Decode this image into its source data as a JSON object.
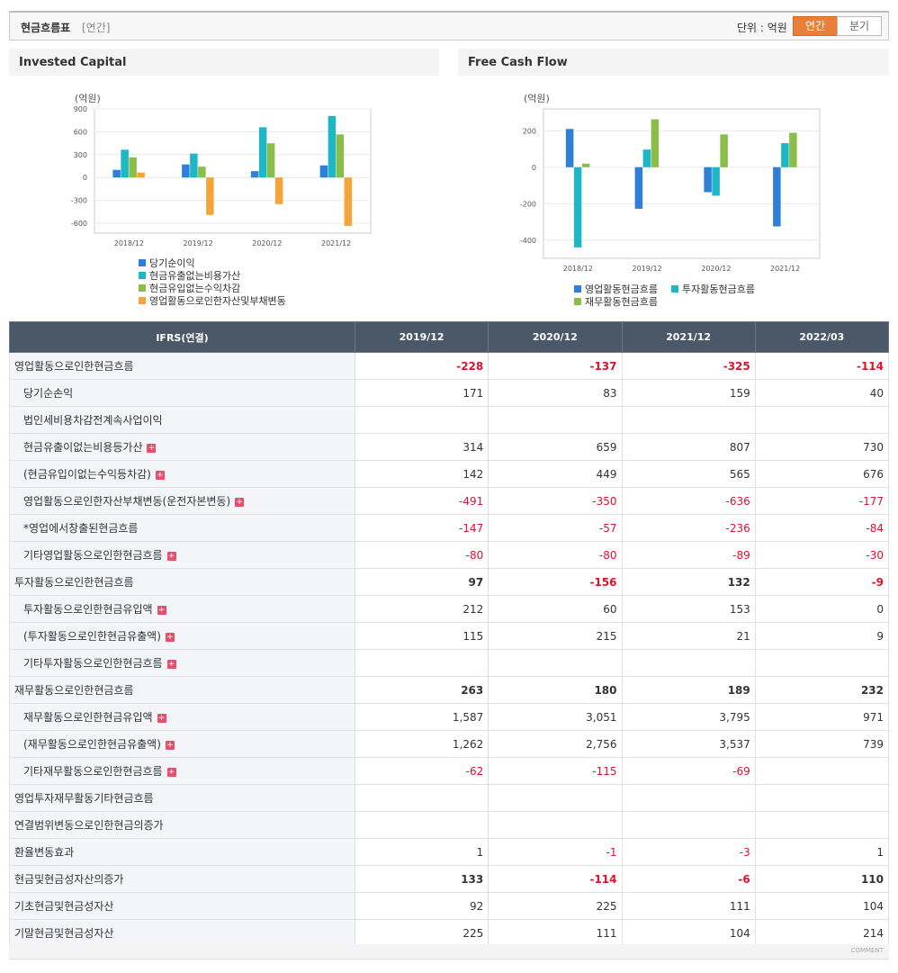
{
  "header": {
    "title": "현금흐름표",
    "period": "[연간]",
    "unit": "단위 : 억원",
    "tabs": [
      "연간",
      "분기"
    ]
  },
  "chart_data": [
    {
      "type": "bar",
      "title": "Invested Capital",
      "y_label": "(억원)",
      "categories": [
        "2018/12",
        "2019/12",
        "2020/12",
        "2021/12"
      ],
      "series": [
        {
          "name": "당기순이익",
          "color": "#2f7ed8",
          "values": [
            100,
            171,
            83,
            159
          ]
        },
        {
          "name": "현금유출없는비용가산",
          "color": "#1fb6c6",
          "values": [
            365,
            314,
            659,
            807
          ]
        },
        {
          "name": "현금유입없는수익차감",
          "color": "#8bbd4b",
          "values": [
            265,
            142,
            449,
            565
          ]
        },
        {
          "name": "영업활동으로인한자산및부채변동",
          "color": "#f5a43a",
          "values": [
            65,
            -491,
            -350,
            -636
          ]
        }
      ],
      "ylim": [
        -730,
        900
      ],
      "yticks": [
        -600,
        -300,
        0,
        300,
        600,
        900
      ],
      "grid": true
    },
    {
      "type": "bar",
      "title": "Free Cash Flow",
      "y_label": "(억원)",
      "categories": [
        "2018/12",
        "2019/12",
        "2020/12",
        "2021/12"
      ],
      "series": [
        {
          "name": "영업활동현금흐름",
          "color": "#2f7ed8",
          "values": [
            210,
            -228,
            -137,
            -325
          ]
        },
        {
          "name": "투자활동현금흐름",
          "color": "#1fb6c6",
          "values": [
            -440,
            97,
            -156,
            132
          ]
        },
        {
          "name": "재무활동현금흐름",
          "color": "#8bbd4b",
          "values": [
            20,
            263,
            180,
            189
          ]
        }
      ],
      "ylim": [
        -500,
        320
      ],
      "yticks": [
        -400,
        -200,
        0,
        200
      ],
      "grid": true
    }
  ],
  "table": {
    "columns": [
      "IFRS(연결)",
      "2019/12",
      "2020/12",
      "2021/12",
      "2022/03"
    ],
    "rows": [
      {
        "label": "영업활동으로인한현금흐름",
        "values": [
          "-228",
          "-137",
          "-325",
          "-114"
        ],
        "bold": true
      },
      {
        "label": "당기순손익",
        "values": [
          "171",
          "83",
          "159",
          "40"
        ],
        "indent": true
      },
      {
        "label": "법인세비용차감전계속사업이익",
        "values": [
          null,
          null,
          null,
          null
        ],
        "indent": true
      },
      {
        "label": "현금유출이없는비용등가산",
        "values": [
          "314",
          "659",
          "807",
          "730"
        ],
        "indent": true,
        "expandable": true
      },
      {
        "label": "(현금유입이없는수익등차감)",
        "values": [
          "142",
          "449",
          "565",
          "676"
        ],
        "indent": true,
        "expandable": true
      },
      {
        "label": "영업활동으로인한자산부채변동(운전자본변동)",
        "values": [
          "-491",
          "-350",
          "-636",
          "-177"
        ],
        "indent": true,
        "expandable": true
      },
      {
        "label": "*영업에서창출된현금흐름",
        "values": [
          "-147",
          "-57",
          "-236",
          "-84"
        ],
        "indent": true
      },
      {
        "label": "기타영업활동으로인한현금흐름",
        "values": [
          "-80",
          "-80",
          "-89",
          "-30"
        ],
        "indent": true,
        "expandable": true
      },
      {
        "label": "투자활동으로인한현금흐름",
        "values": [
          "97",
          "-156",
          "132",
          "-9"
        ],
        "bold": true
      },
      {
        "label": "투자활동으로인한현금유입액",
        "values": [
          "212",
          "60",
          "153",
          "0"
        ],
        "indent": true,
        "expandable": true
      },
      {
        "label": "(투자활동으로인한현금유출액)",
        "values": [
          "115",
          "215",
          "21",
          "9"
        ],
        "indent": true,
        "expandable": true
      },
      {
        "label": "기타투자활동으로인한현금흐름",
        "values": [
          null,
          null,
          null,
          null
        ],
        "indent": true,
        "expandable": true
      },
      {
        "label": "재무활동으로인한현금흐름",
        "values": [
          "263",
          "180",
          "189",
          "232"
        ],
        "bold": true
      },
      {
        "label": "재무활동으로인한현금유입액",
        "values": [
          "1,587",
          "3,051",
          "3,795",
          "971"
        ],
        "indent": true,
        "expandable": true
      },
      {
        "label": "(재무활동으로인한현금유출액)",
        "values": [
          "1,262",
          "2,756",
          "3,537",
          "739"
        ],
        "indent": true,
        "expandable": true
      },
      {
        "label": "기타재무활동으로인한현금흐름",
        "values": [
          "-62",
          "-115",
          "-69",
          null
        ],
        "indent": true,
        "expandable": true
      },
      {
        "label": "영업투자재무활동기타현금흐름",
        "values": [
          null,
          null,
          null,
          null
        ]
      },
      {
        "label": "연결범위변동으로인한현금의증가",
        "values": [
          null,
          null,
          null,
          null
        ]
      },
      {
        "label": "환율변동효과",
        "values": [
          "1",
          "-1",
          "-3",
          "1"
        ]
      },
      {
        "label": "현금및현금성자산의증가",
        "values": [
          "133",
          "-114",
          "-6",
          "110"
        ],
        "bold": true
      },
      {
        "label": "기초현금및현금성자산",
        "values": [
          "92",
          "225",
          "111",
          "104"
        ]
      },
      {
        "label": "기말현금및현금성자산",
        "values": [
          "225",
          "111",
          "104",
          "214"
        ]
      }
    ]
  },
  "footer": {
    "comment": "COMMENT"
  }
}
